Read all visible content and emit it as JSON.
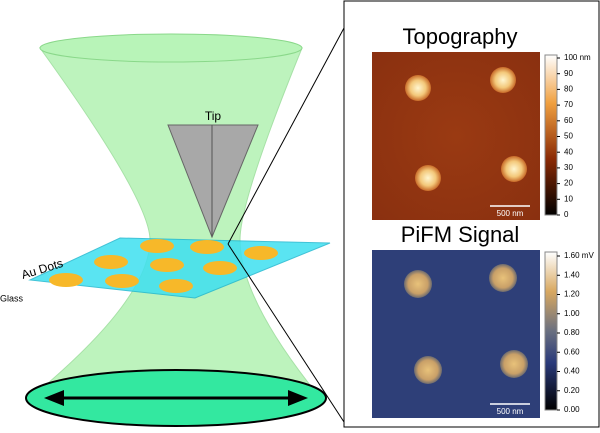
{
  "figure": {
    "left": {
      "tip_label": "Tip",
      "dots_label": "Au Dots",
      "glass_label": "Glass"
    },
    "topography": {
      "title": "Topography",
      "scale_bar": "500 nm",
      "colorbar_ticks": [
        "100 nm",
        "90",
        "80",
        "70",
        "60",
        "50",
        "40",
        "30",
        "20",
        "10",
        "0"
      ]
    },
    "pifm": {
      "title": "PiFM Signal",
      "scale_bar": "500 nm",
      "colorbar_ticks": [
        "1.60 mV",
        "1.40",
        "1.20",
        "1.00",
        "0.80",
        "0.60",
        "0.40",
        "0.20",
        "0.00"
      ]
    }
  }
}
